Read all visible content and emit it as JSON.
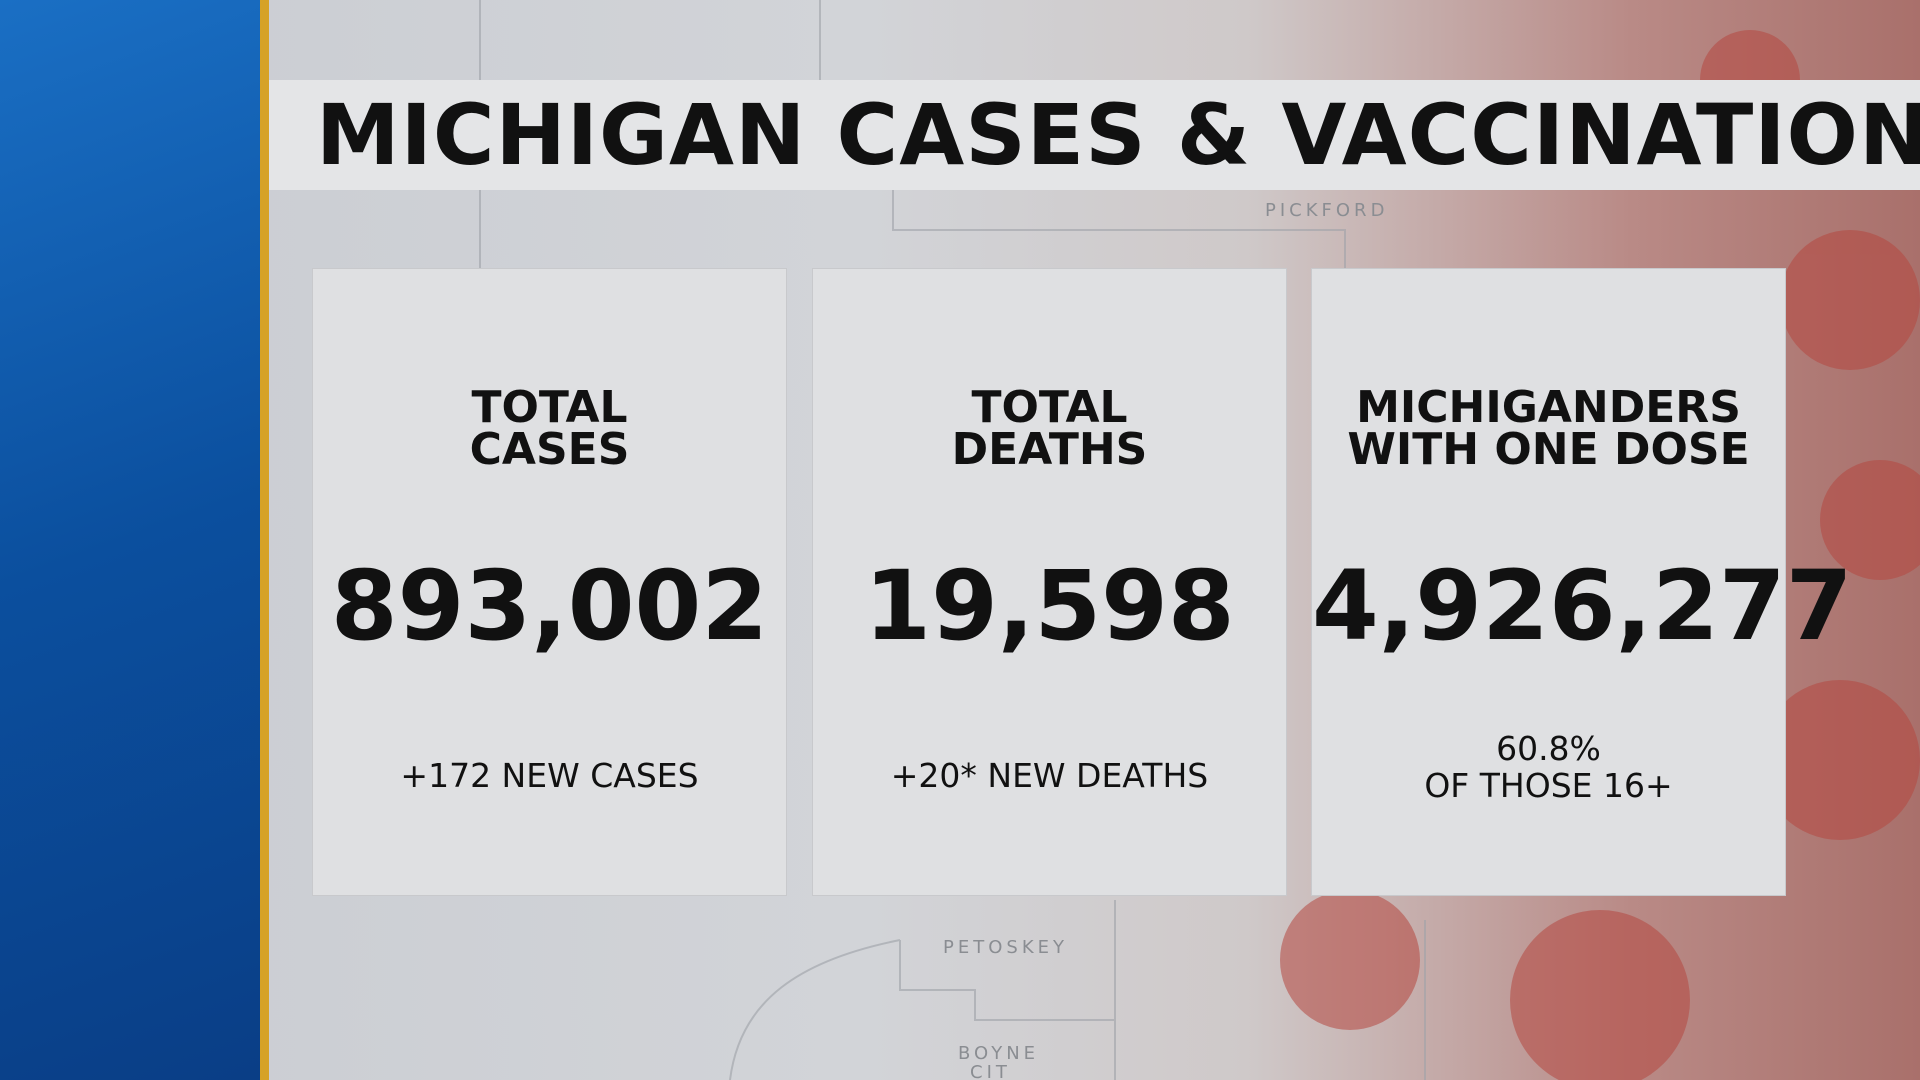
{
  "header": {
    "title": "MICHIGAN CASES & VACCINATIONS"
  },
  "cards": [
    {
      "heading": [
        "TOTAL",
        "CASES"
      ],
      "value": "893,002",
      "note": [
        "+172 NEW CASES"
      ]
    },
    {
      "heading": [
        "TOTAL",
        "DEATHS"
      ],
      "value": "19,598",
      "note": [
        "+20* NEW DEATHS"
      ]
    },
    {
      "heading": [
        "MICHIGANDERS",
        "WITH ONE DOSE"
      ],
      "value": "4,926,277",
      "note": [
        "60.8%",
        "OF THOSE 16+"
      ]
    }
  ],
  "map_labels": [
    "PICKFORD",
    "PETOSKEY",
    "BOYNE",
    "CIT"
  ]
}
